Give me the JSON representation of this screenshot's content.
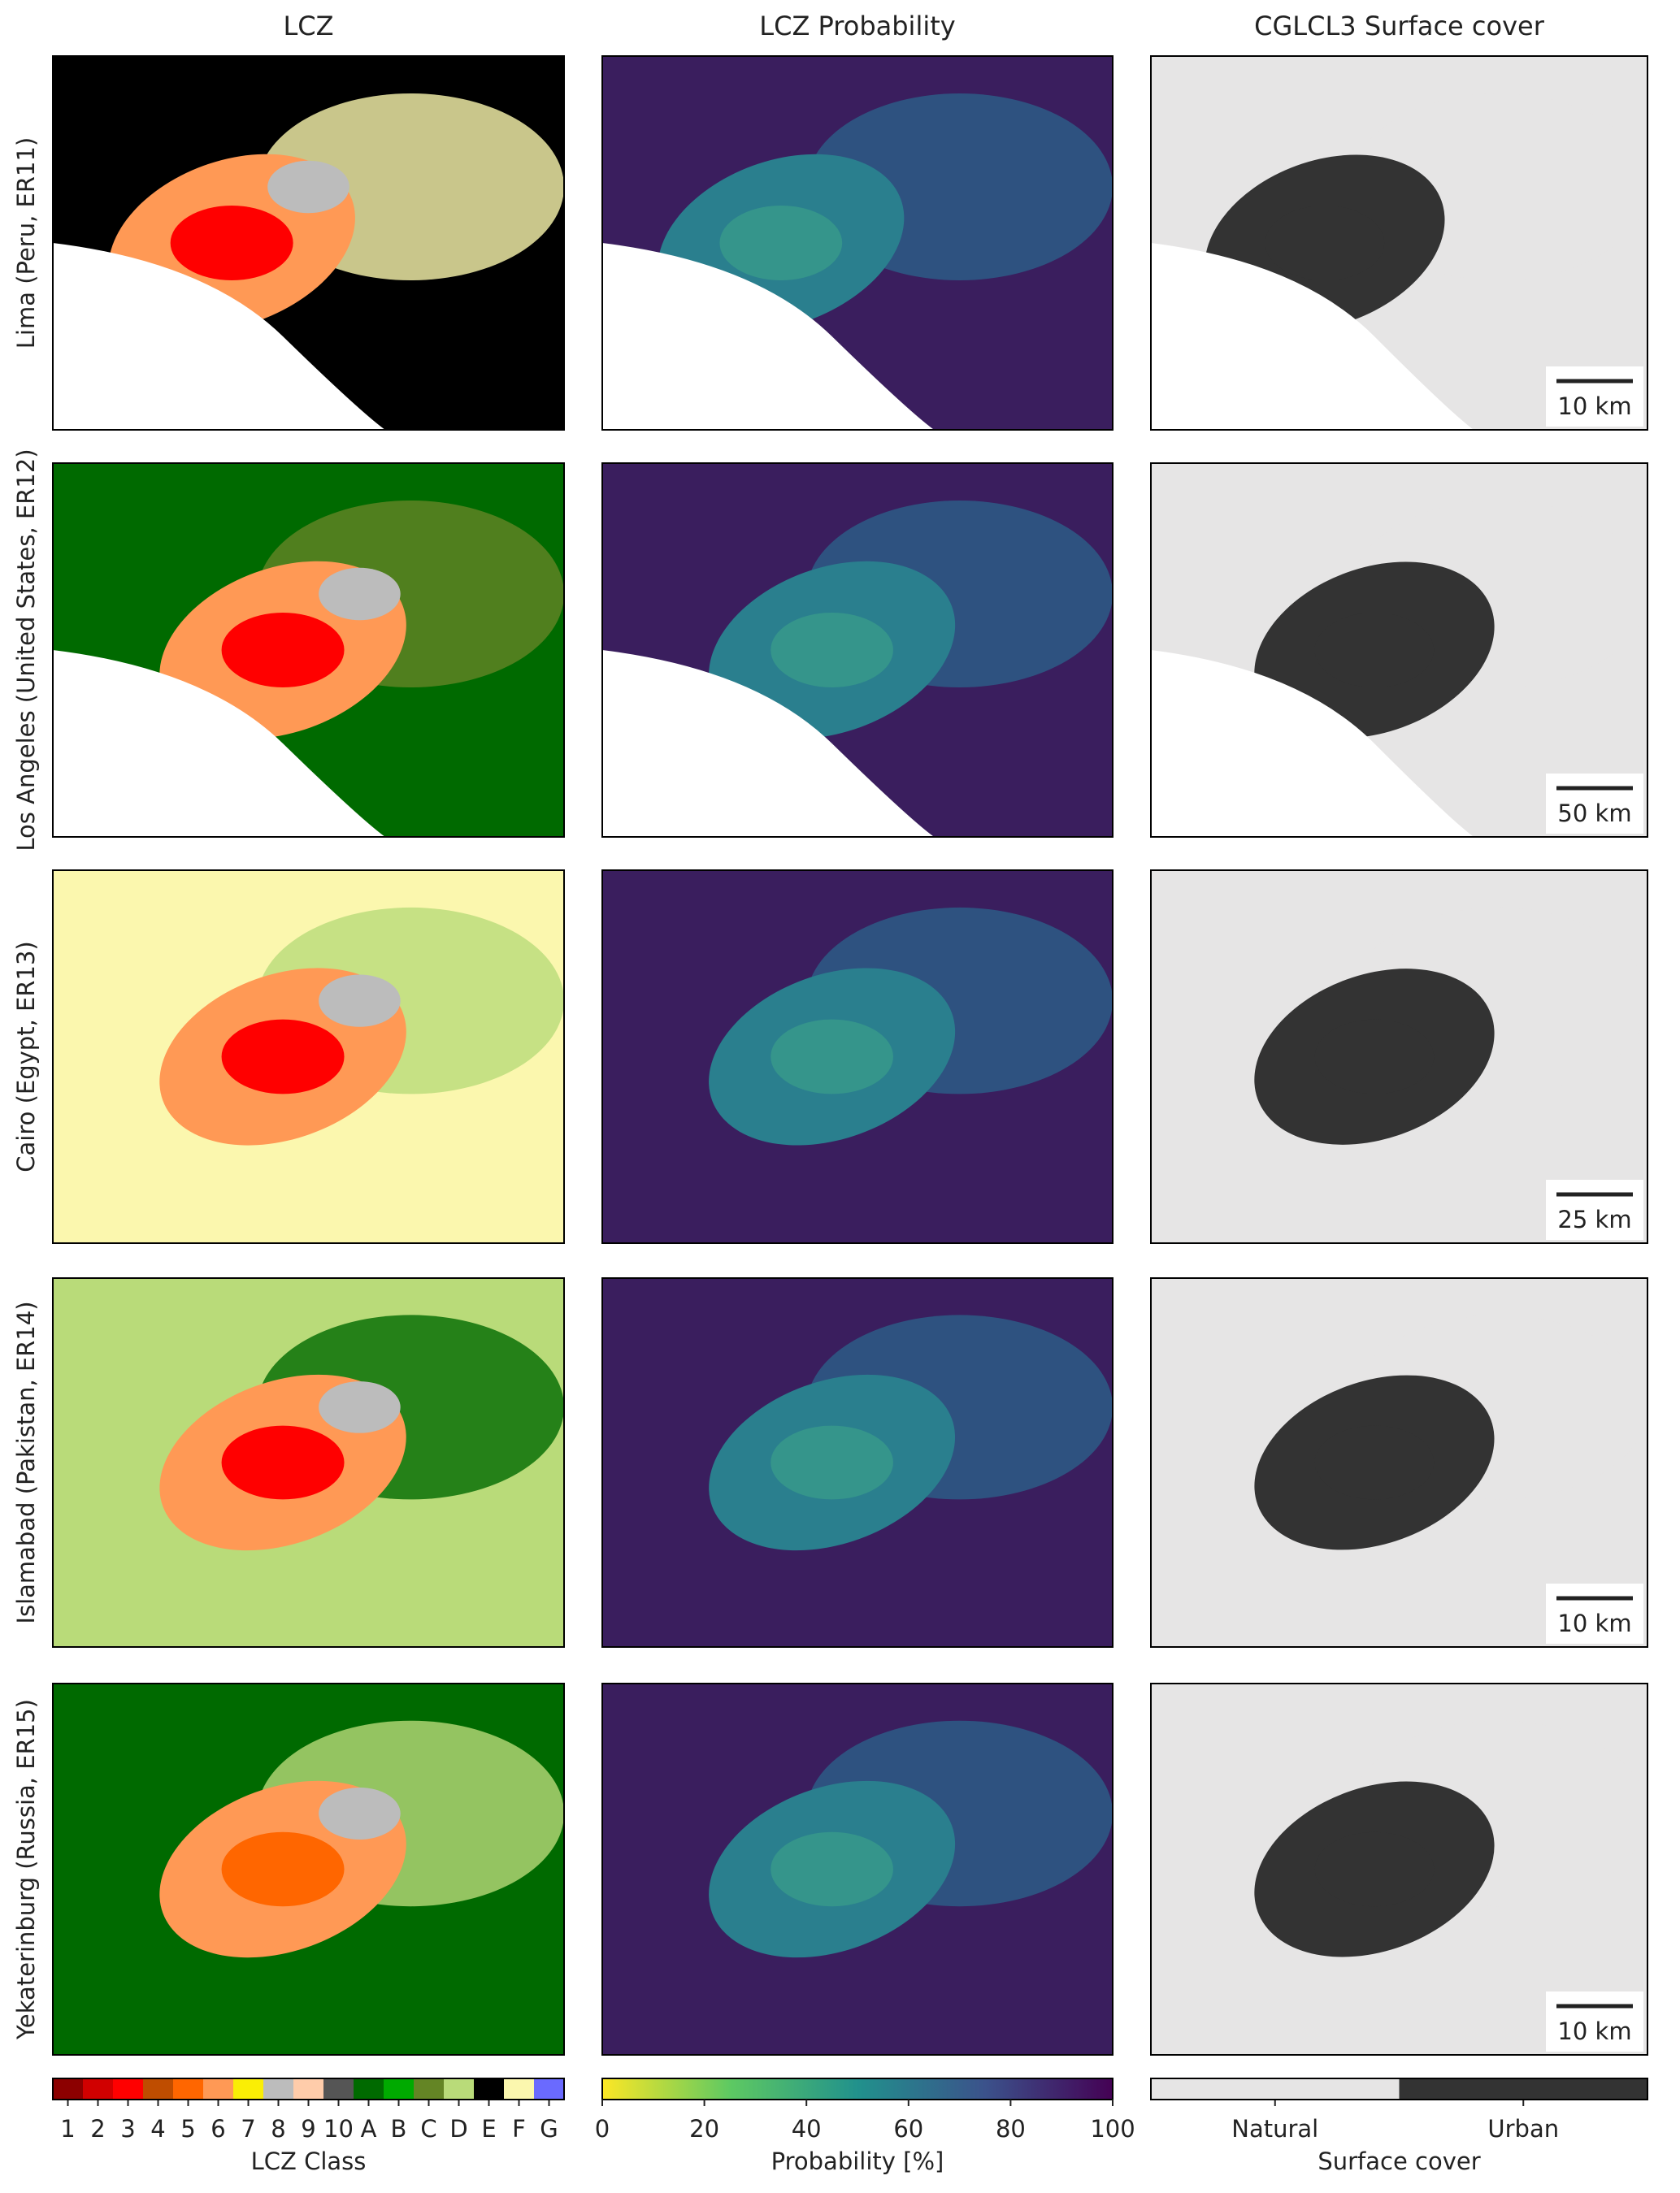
{
  "columns": [
    "LCZ",
    "LCZ Probability",
    "CGLCL3 Surface cover"
  ],
  "rows": [
    {
      "label": "Lima (Peru, ER11)",
      "scale_bar": "10 km"
    },
    {
      "label": "Los Angeles (United States, ER12)",
      "scale_bar": "50 km"
    },
    {
      "label": "Cairo (Egypt, ER13)",
      "scale_bar": "25 km"
    },
    {
      "label": "Islamabad (Pakistan, ER14)",
      "scale_bar": "10 km"
    },
    {
      "label": "Yekaterinburg (Russia, ER15)",
      "scale_bar": "10 km"
    }
  ],
  "lcz_colorbar": {
    "label": "LCZ Class",
    "classes": [
      {
        "label": "1",
        "color": "#8c0000"
      },
      {
        "label": "2",
        "color": "#d10000"
      },
      {
        "label": "3",
        "color": "#ff0000"
      },
      {
        "label": "4",
        "color": "#bf4d00"
      },
      {
        "label": "5",
        "color": "#ff6600"
      },
      {
        "label": "6",
        "color": "#ff9955"
      },
      {
        "label": "7",
        "color": "#faee05"
      },
      {
        "label": "8",
        "color": "#bcbcbc"
      },
      {
        "label": "9",
        "color": "#ffccaa"
      },
      {
        "label": "10",
        "color": "#555555"
      },
      {
        "label": "A",
        "color": "#006a00"
      },
      {
        "label": "B",
        "color": "#00aa00"
      },
      {
        "label": "C",
        "color": "#648525"
      },
      {
        "label": "D",
        "color": "#b9db79"
      },
      {
        "label": "E",
        "color": "#000000"
      },
      {
        "label": "F",
        "color": "#fbf7ae"
      },
      {
        "label": "G",
        "color": "#6a6aff"
      }
    ]
  },
  "probability_colorbar": {
    "label": "Probability [%]",
    "lim": [
      0,
      100
    ],
    "ticks": [
      0,
      20,
      40,
      60,
      80,
      100
    ]
  },
  "surface_colorbar": {
    "label": "Surface cover",
    "classes": [
      {
        "label": "Natural",
        "color": "#e6e5e5"
      },
      {
        "label": "Urban",
        "color": "#333333"
      }
    ]
  }
}
